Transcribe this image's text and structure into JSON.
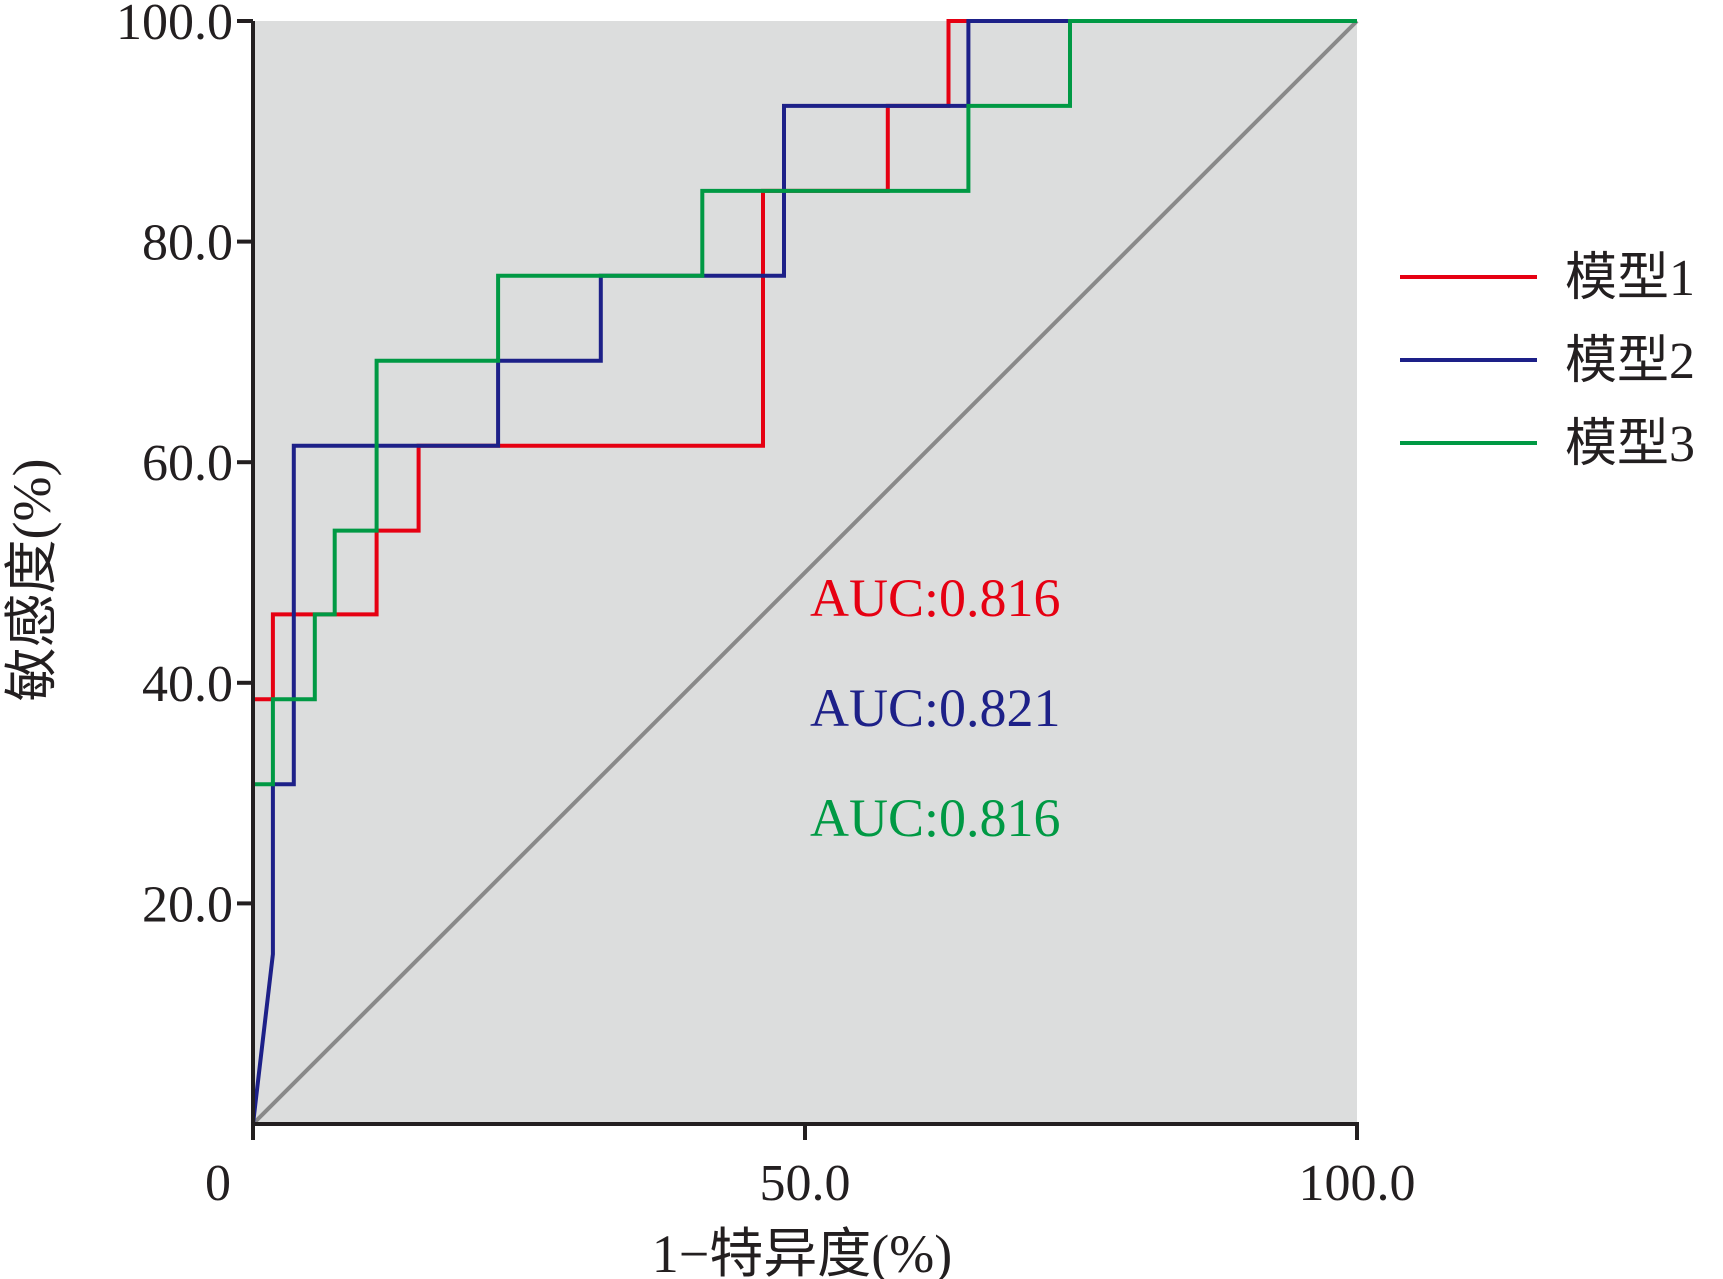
{
  "chart_data": {
    "type": "line",
    "xlabel": "1−特异度(%)",
    "ylabel": "敏感度(%)",
    "xlim": [
      0,
      100
    ],
    "ylim": [
      0,
      100
    ],
    "x_ticks": [
      {
        "value": 0,
        "label": "0"
      },
      {
        "value": 50,
        "label": "50.0"
      },
      {
        "value": 100,
        "label": "100.0"
      }
    ],
    "y_ticks": [
      {
        "value": 20,
        "label": "20.0"
      },
      {
        "value": 40,
        "label": "40.0"
      },
      {
        "value": 60,
        "label": "60.0"
      },
      {
        "value": 80,
        "label": "80.0"
      },
      {
        "value": 100,
        "label": "100.0"
      }
    ],
    "legend_position": "right",
    "background_color": "#dcdddd",
    "reference_line": {
      "x": [
        0,
        100
      ],
      "y": [
        0,
        100
      ],
      "color": "#898989"
    },
    "series": [
      {
        "name": "模型1",
        "color": "#e60012",
        "auc_label": "AUC:0.816",
        "x": [
          0,
          0,
          1.8,
          1.8,
          11.2,
          11.2,
          15,
          15,
          46.2,
          46.2,
          57.5,
          57.5,
          63,
          63,
          64.8,
          64.8,
          100
        ],
        "y": [
          0,
          38.5,
          38.5,
          46.2,
          46.2,
          53.8,
          53.8,
          61.5,
          61.5,
          84.6,
          84.6,
          92.3,
          92.3,
          100,
          100,
          100,
          100
        ]
      },
      {
        "name": "模型2",
        "color": "#1d2088",
        "auc_label": "AUC:0.821",
        "x": [
          0,
          1.8,
          1.8,
          3.7,
          3.7,
          22.2,
          22.2,
          31.5,
          31.5,
          48.1,
          48.1,
          64.8,
          64.8,
          74,
          74,
          100
        ],
        "y": [
          0,
          15.4,
          30.8,
          30.8,
          61.5,
          61.5,
          69.2,
          69.2,
          76.9,
          76.9,
          92.3,
          92.3,
          100,
          100,
          100,
          100
        ]
      },
      {
        "name": "模型3",
        "color": "#009944",
        "auc_label": "AUC:0.816",
        "x": [
          0,
          0,
          1.8,
          1.8,
          5.6,
          5.6,
          7.4,
          7.4,
          11.2,
          11.2,
          22.2,
          22.2,
          40.7,
          40.7,
          64.8,
          64.8,
          74,
          74,
          100
        ],
        "y": [
          0,
          30.8,
          30.8,
          38.5,
          38.5,
          46.2,
          46.2,
          53.8,
          53.8,
          69.2,
          69.2,
          76.9,
          76.9,
          84.6,
          84.6,
          92.3,
          92.3,
          100,
          100
        ]
      }
    ]
  }
}
